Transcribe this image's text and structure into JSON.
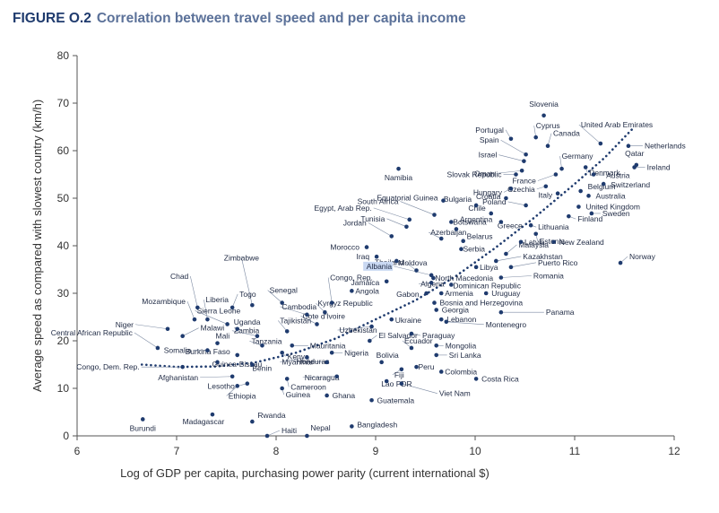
{
  "figure": {
    "number": "FIGURE O.2",
    "title": "Correlation between travel speed and per capita income"
  },
  "chart_data": {
    "type": "scatter",
    "xlabel": "Log of GDP per capita, purchasing power parity (current international $)",
    "ylabel": "Average speed as compared with slowest country (km/h)",
    "xlim": [
      6,
      12
    ],
    "ylim": [
      0,
      80
    ],
    "xticks": [
      6,
      7,
      8,
      9,
      10,
      11,
      12
    ],
    "yticks": [
      0,
      10,
      20,
      30,
      40,
      50,
      60,
      70,
      80
    ],
    "grid": false,
    "colors": {
      "point": "#1f3b6e",
      "trend": "#1f3b6e",
      "label": "#1f2a44",
      "highlight": "#c9d8f2"
    },
    "highlighted": "Albania",
    "trend": {
      "style": "dotted",
      "x": [
        6.65,
        7.0,
        7.4,
        7.8,
        8.2,
        8.6,
        9.0,
        9.4,
        9.8,
        10.2,
        10.6,
        11.0,
        11.3,
        11.6
      ],
      "y": [
        15.0,
        14.5,
        14.6,
        15.5,
        17.5,
        20.5,
        24.5,
        28.5,
        33.5,
        39.5,
        46.0,
        53.0,
        58.5,
        65.0
      ]
    },
    "points": [
      {
        "name": "Slovenia",
        "x": 10.69,
        "y": 67.4
      },
      {
        "name": "Portugal",
        "x": 10.36,
        "y": 62.5
      },
      {
        "name": "United Arab Emirates",
        "x": 11.26,
        "y": 61.5
      },
      {
        "name": "Cyprus",
        "x": 10.61,
        "y": 62.8
      },
      {
        "name": "Spain",
        "x": 10.51,
        "y": 59.2
      },
      {
        "name": "Israel",
        "x": 10.49,
        "y": 57.8
      },
      {
        "name": "Canada",
        "x": 10.73,
        "y": 61.0
      },
      {
        "name": "Netherlands",
        "x": 11.54,
        "y": 61.0
      },
      {
        "name": "Oman",
        "x": 10.47,
        "y": 55.8
      },
      {
        "name": "Germany",
        "x": 10.87,
        "y": 56.2
      },
      {
        "name": "Qatar",
        "x": 11.62,
        "y": 57.0
      },
      {
        "name": "Ireland",
        "x": 11.6,
        "y": 56.5
      },
      {
        "name": "Namibia",
        "x": 9.23,
        "y": 56.2
      },
      {
        "name": "Slovak Republic",
        "x": 10.41,
        "y": 55.0
      },
      {
        "name": "Denmark",
        "x": 11.11,
        "y": 56.5
      },
      {
        "name": "France",
        "x": 10.81,
        "y": 55.0
      },
      {
        "name": "Austria",
        "x": 11.19,
        "y": 55.0
      },
      {
        "name": "Hungary",
        "x": 10.36,
        "y": 52.0
      },
      {
        "name": "Czechia",
        "x": 10.71,
        "y": 52.5
      },
      {
        "name": "Switzerland",
        "x": 11.29,
        "y": 53.0
      },
      {
        "name": "Croatia",
        "x": 10.31,
        "y": 50.0
      },
      {
        "name": "Italy",
        "x": 10.83,
        "y": 51.0
      },
      {
        "name": "Belgium",
        "x": 11.06,
        "y": 51.5
      },
      {
        "name": "Equatorial Guinea",
        "x": 9.68,
        "y": 49.5
      },
      {
        "name": "Australia",
        "x": 11.14,
        "y": 50.5
      },
      {
        "name": "Bulgaria",
        "x": 10.01,
        "y": 48.5
      },
      {
        "name": "Poland",
        "x": 10.51,
        "y": 48.5
      },
      {
        "name": "United Kingdom",
        "x": 11.04,
        "y": 48.2
      },
      {
        "name": "South Africa",
        "x": 9.59,
        "y": 46.5
      },
      {
        "name": "Chile",
        "x": 10.16,
        "y": 46.8
      },
      {
        "name": "Sweden",
        "x": 11.17,
        "y": 46.8
      },
      {
        "name": "Finland",
        "x": 10.94,
        "y": 46.2
      },
      {
        "name": "Egypt, Arab Rep.",
        "x": 9.34,
        "y": 45.5
      },
      {
        "name": "Botswana",
        "x": 9.76,
        "y": 45.0
      },
      {
        "name": "Greece",
        "x": 10.26,
        "y": 45.0
      },
      {
        "name": "Tunisia",
        "x": 9.31,
        "y": 44.0
      },
      {
        "name": "Lithuania",
        "x": 10.56,
        "y": 44.3
      },
      {
        "name": "Argentina",
        "x": 9.81,
        "y": 43.5
      },
      {
        "name": "Jordan",
        "x": 9.16,
        "y": 42.0
      },
      {
        "name": "Estonia",
        "x": 10.61,
        "y": 42.5
      },
      {
        "name": "Azerbaijan",
        "x": 9.66,
        "y": 41.5
      },
      {
        "name": "Belarus",
        "x": 9.88,
        "y": 41.0
      },
      {
        "name": "Latvia",
        "x": 10.46,
        "y": 40.8
      },
      {
        "name": "New Zealand",
        "x": 10.79,
        "y": 40.8
      },
      {
        "name": "Morocco",
        "x": 8.91,
        "y": 39.7
      },
      {
        "name": "Serbia",
        "x": 9.86,
        "y": 39.3
      },
      {
        "name": "Malaysia",
        "x": 10.31,
        "y": 38.3
      },
      {
        "name": "Iraq",
        "x": 9.01,
        "y": 37.7
      },
      {
        "name": "Moldova",
        "x": 9.21,
        "y": 36.8
      },
      {
        "name": "Kazakhstan",
        "x": 10.21,
        "y": 36.8
      },
      {
        "name": "Norway",
        "x": 11.46,
        "y": 36.4
      },
      {
        "name": "Libya",
        "x": 10.01,
        "y": 35.5
      },
      {
        "name": "Puerto Rico",
        "x": 10.36,
        "y": 35.5
      },
      {
        "name": "Thailand",
        "x": 9.41,
        "y": 34.8
      },
      {
        "name": "Albania",
        "x": 9.56,
        "y": 33.8
      },
      {
        "name": "Romania",
        "x": 10.26,
        "y": 33.3
      },
      {
        "name": "North Macedonia",
        "x": 9.58,
        "y": 33.2
      },
      {
        "name": "Zimbabwe",
        "x": 7.76,
        "y": 27.5
      },
      {
        "name": "Congo, Rep.",
        "x": 8.56,
        "y": 28.0
      },
      {
        "name": "Jamaica",
        "x": 9.11,
        "y": 32.5
      },
      {
        "name": "Algeria",
        "x": 9.56,
        "y": 32.2
      },
      {
        "name": "Dominican Republic",
        "x": 9.76,
        "y": 31.8
      },
      {
        "name": "Angola",
        "x": 8.76,
        "y": 30.5
      },
      {
        "name": "Gabon",
        "x": 9.51,
        "y": 30.0
      },
      {
        "name": "Armenia",
        "x": 9.66,
        "y": 30.0
      },
      {
        "name": "Uruguay",
        "x": 10.11,
        "y": 30.0
      },
      {
        "name": "Senegal",
        "x": 8.06,
        "y": 28.0
      },
      {
        "name": "Chad",
        "x": 7.21,
        "y": 27.0
      },
      {
        "name": "Togo",
        "x": 7.56,
        "y": 27.0
      },
      {
        "name": "Kyrgyz Republic",
        "x": 8.49,
        "y": 26.0
      },
      {
        "name": "Bosnia and Herzegovina",
        "x": 9.59,
        "y": 28.0
      },
      {
        "name": "Mozambique",
        "x": 7.18,
        "y": 24.5
      },
      {
        "name": "Liberia",
        "x": 7.31,
        "y": 24.5
      },
      {
        "name": "Cambodia",
        "x": 8.31,
        "y": 25.5
      },
      {
        "name": "Georgia",
        "x": 9.61,
        "y": 26.5
      },
      {
        "name": "Panama",
        "x": 10.26,
        "y": 26.0
      },
      {
        "name": "Sierra Leone",
        "x": 7.51,
        "y": 23.5
      },
      {
        "name": "Cote d'Ivoire",
        "x": 8.41,
        "y": 23.5
      },
      {
        "name": "Ukraine",
        "x": 9.16,
        "y": 24.5
      },
      {
        "name": "Lebanon",
        "x": 9.66,
        "y": 24.5
      },
      {
        "name": "Niger",
        "x": 6.91,
        "y": 22.5
      },
      {
        "name": "Uganda",
        "x": 7.61,
        "y": 22.5
      },
      {
        "name": "Tajikistan",
        "x": 8.11,
        "y": 22.0
      },
      {
        "name": "Montenegro",
        "x": 9.71,
        "y": 24.0
      },
      {
        "name": "Uzbekistan",
        "x": 8.96,
        "y": 23.0
      },
      {
        "name": "Malawi",
        "x": 7.06,
        "y": 21.0
      },
      {
        "name": "Zambia",
        "x": 7.81,
        "y": 21.0
      },
      {
        "name": "Paraguay",
        "x": 9.36,
        "y": 21.5
      },
      {
        "name": "El Salvador",
        "x": 8.94,
        "y": 20.0
      },
      {
        "name": "Central African Republic",
        "x": 6.81,
        "y": 18.5
      },
      {
        "name": "Mali",
        "x": 7.41,
        "y": 19.5
      },
      {
        "name": "Tanzania",
        "x": 7.86,
        "y": 19.0
      },
      {
        "name": "Mauritania",
        "x": 8.16,
        "y": 19.0
      },
      {
        "name": "Ecuador",
        "x": 9.36,
        "y": 18.5
      },
      {
        "name": "Mongolia",
        "x": 9.61,
        "y": 19.0
      },
      {
        "name": "Somalia",
        "x": 7.31,
        "y": 18.0
      },
      {
        "name": "Kenya",
        "x": 8.06,
        "y": 17.5
      },
      {
        "name": "Nigeria",
        "x": 8.56,
        "y": 17.5
      },
      {
        "name": "Sri Lanka",
        "x": 9.61,
        "y": 17.0
      },
      {
        "name": "Burkina Faso",
        "x": 7.61,
        "y": 17.0
      },
      {
        "name": "Myanmar",
        "x": 8.31,
        "y": 16.5
      },
      {
        "name": "Bolivia",
        "x": 9.06,
        "y": 15.5
      },
      {
        "name": "Guinea-Bissau",
        "x": 7.41,
        "y": 15.5
      },
      {
        "name": "Benin",
        "x": 7.76,
        "y": 15.0
      },
      {
        "name": "Honduras",
        "x": 8.51,
        "y": 15.5
      },
      {
        "name": "Peru",
        "x": 9.41,
        "y": 14.5
      },
      {
        "name": "Congo, Dem. Rep.",
        "x": 7.06,
        "y": 14.5
      },
      {
        "name": "Fiji",
        "x": 9.26,
        "y": 14.0
      },
      {
        "name": "Colombia",
        "x": 9.66,
        "y": 13.5
      },
      {
        "name": "Afghanistan",
        "x": 7.56,
        "y": 12.5
      },
      {
        "name": "Nicaragua",
        "x": 8.61,
        "y": 12.5
      },
      {
        "name": "Costa Rica",
        "x": 10.01,
        "y": 12.0
      },
      {
        "name": "Lesotho",
        "x": 7.71,
        "y": 11.0
      },
      {
        "name": "Cameroon",
        "x": 8.11,
        "y": 12.0
      },
      {
        "name": "Lao PDR",
        "x": 9.11,
        "y": 11.5
      },
      {
        "name": "Viet Nam",
        "x": 9.26,
        "y": 11.0
      },
      {
        "name": "Ethiopia",
        "x": 7.61,
        "y": 10.5
      },
      {
        "name": "Guinea",
        "x": 8.06,
        "y": 10.0
      },
      {
        "name": "Ghana",
        "x": 8.51,
        "y": 8.5
      },
      {
        "name": "Guatemala",
        "x": 8.96,
        "y": 7.5
      },
      {
        "name": "Madagascar",
        "x": 7.36,
        "y": 4.5
      },
      {
        "name": "Rwanda",
        "x": 7.76,
        "y": 3.0
      },
      {
        "name": "Burundi",
        "x": 6.66,
        "y": 3.5
      },
      {
        "name": "Haiti",
        "x": 7.91,
        "y": 0.0
      },
      {
        "name": "Nepal",
        "x": 8.31,
        "y": 0.0
      },
      {
        "name": "Bangladesh",
        "x": 8.76,
        "y": 2.0
      }
    ]
  }
}
